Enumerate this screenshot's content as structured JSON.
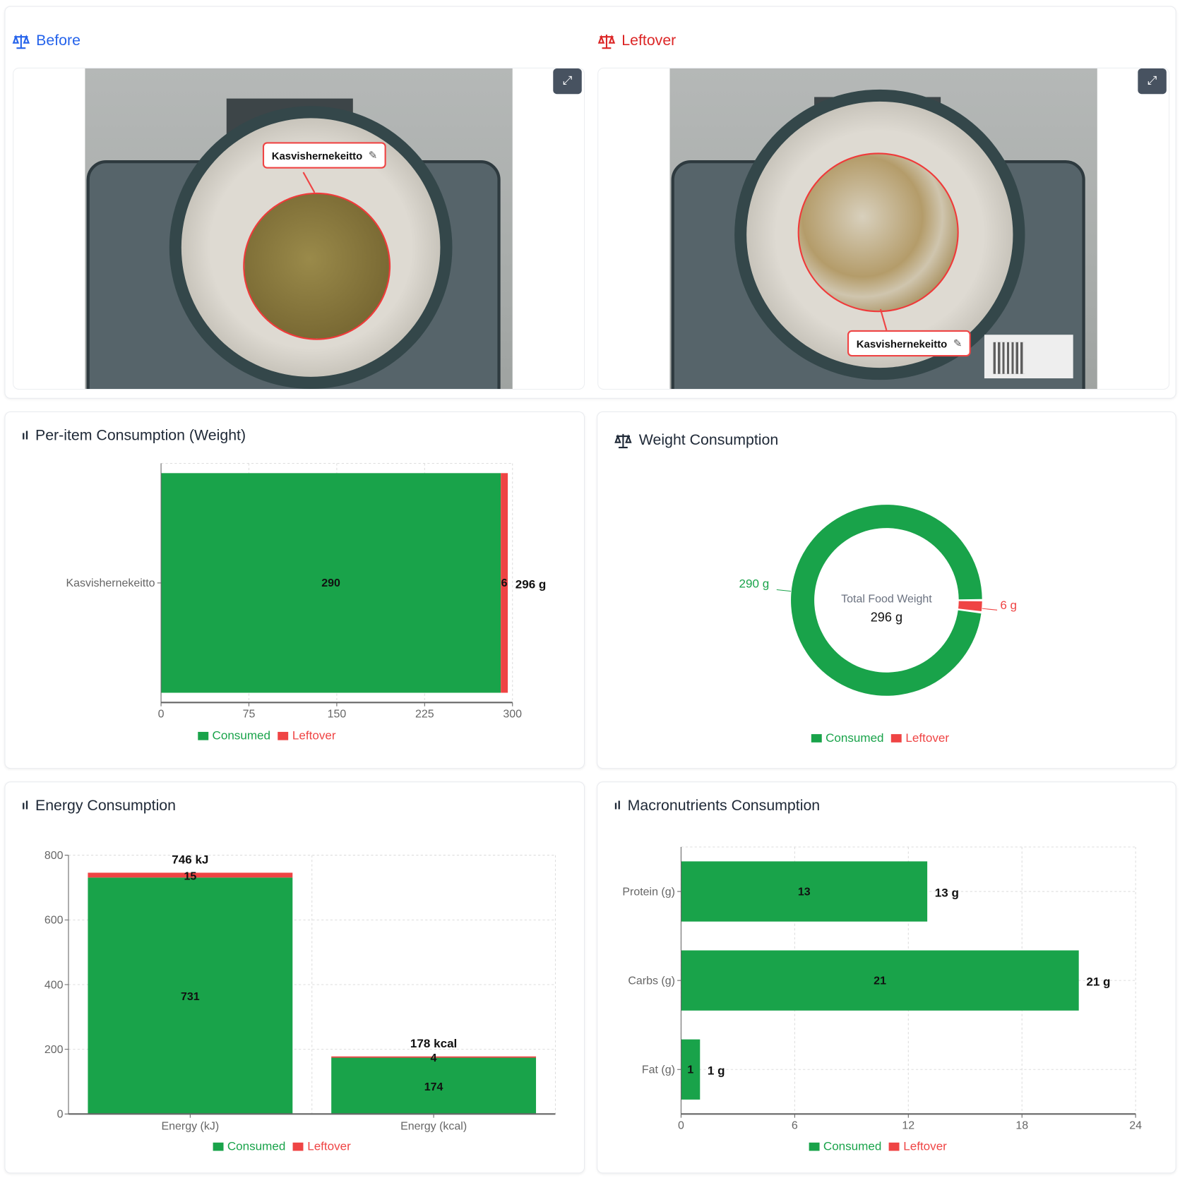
{
  "images": {
    "before": {
      "title": "Before",
      "title_color": "#2563eb",
      "food_label": "Kasvishernekeitto",
      "icon": "scale-icon",
      "expand_icon": "expand-icon",
      "edit_icon": "edit-icon"
    },
    "leftover": {
      "title": "Leftover",
      "title_color": "#dc2626",
      "food_label": "Kasvishernekeitto",
      "icon": "scale-icon",
      "expand_icon": "expand-icon",
      "edit_icon": "edit-icon"
    }
  },
  "colors": {
    "consumed": "#19a34a",
    "leftover": "#ef4444",
    "text": "#1f2937",
    "axis": "#666666"
  },
  "legend": {
    "consumed": "Consumed",
    "leftover": "Leftover"
  },
  "panels": {
    "per_item": {
      "title": "Per-item Consumption (Weight)",
      "icon": "bar-chart-icon"
    },
    "weight": {
      "title": "Weight Consumption",
      "icon": "scale-icon",
      "center_label": "Total Food Weight",
      "center_value": "296 g",
      "consumed_label": "290 g",
      "leftover_label": "6 g"
    },
    "energy": {
      "title": "Energy Consumption",
      "icon": "bar-chart-icon"
    },
    "macros": {
      "title": "Macronutrients Consumption",
      "icon": "bar-chart-icon"
    }
  },
  "chart_data": [
    {
      "type": "bar",
      "orientation": "horizontal",
      "stacked": true,
      "categories": [
        "Kasvishernekeitto"
      ],
      "series": [
        {
          "name": "Consumed",
          "values": [
            290
          ]
        },
        {
          "name": "Leftover",
          "values": [
            6
          ]
        }
      ],
      "totals": [
        "296 g"
      ],
      "xlim": [
        0,
        300
      ],
      "xticks": [
        "0",
        "75",
        "150",
        "225",
        "300"
      ],
      "grid": true,
      "legend": "bottom"
    },
    {
      "type": "pie",
      "donut": true,
      "categories": [
        "Consumed",
        "Leftover"
      ],
      "values": [
        290,
        6
      ],
      "legend": "bottom"
    },
    {
      "type": "bar",
      "orientation": "vertical",
      "stacked": true,
      "categories": [
        "Energy (kJ)",
        "Energy (kcal)"
      ],
      "series": [
        {
          "name": "Consumed",
          "values": [
            731,
            174
          ]
        },
        {
          "name": "Leftover",
          "values": [
            15,
            4
          ]
        }
      ],
      "totals": [
        "746 kJ",
        "178 kcal"
      ],
      "ylim": [
        0,
        800
      ],
      "yticks": [
        "0",
        "200",
        "400",
        "600",
        "800"
      ],
      "grid": true,
      "legend": "bottom"
    },
    {
      "type": "bar",
      "orientation": "horizontal",
      "stacked": true,
      "categories": [
        "Protein (g)",
        "Carbs (g)",
        "Fat (g)"
      ],
      "series": [
        {
          "name": "Consumed",
          "values": [
            13,
            21,
            1
          ]
        },
        {
          "name": "Leftover",
          "values": [
            0,
            0,
            0
          ]
        }
      ],
      "totals": [
        "13 g",
        "21 g",
        "1 g"
      ],
      "xlim": [
        0,
        24
      ],
      "xticks": [
        "0",
        "6",
        "12",
        "18",
        "24"
      ],
      "grid": true,
      "legend": "bottom"
    }
  ]
}
